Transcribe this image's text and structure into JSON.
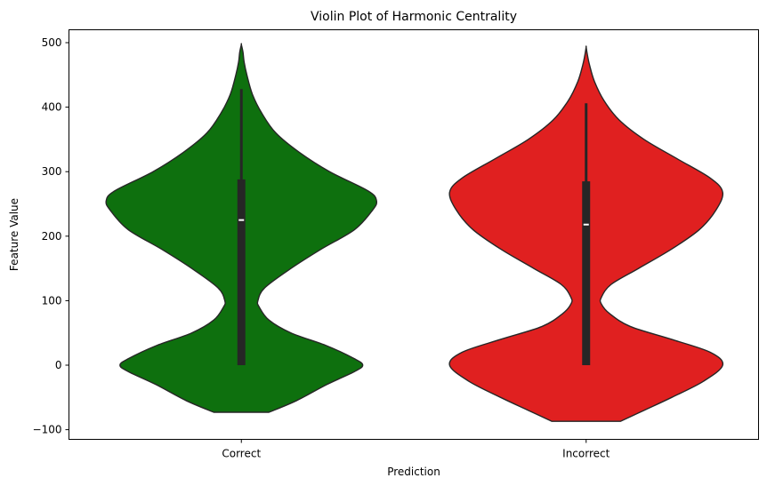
{
  "chart_data": {
    "type": "violin",
    "title": "Violin Plot of Harmonic Centrality",
    "xlabel": "Prediction",
    "ylabel": "Feature Value",
    "categories": [
      "Correct",
      "Incorrect"
    ],
    "ylim": [
      -115,
      520
    ],
    "yticks": [
      -100,
      0,
      100,
      200,
      300,
      400,
      500
    ],
    "ytick_labels": [
      "−100",
      "0",
      "100",
      "200",
      "300",
      "400",
      "500"
    ],
    "grid": false,
    "violins": [
      {
        "category": "Correct",
        "color": "#0e700e",
        "min": -73,
        "max": 497,
        "q1": 0,
        "median": 225,
        "q3": 288,
        "whisker_low": 0,
        "whisker_high": 428,
        "density": [
          [
            -73,
            0.2
          ],
          [
            -55,
            0.4
          ],
          [
            -30,
            0.62
          ],
          [
            -10,
            0.82
          ],
          [
            0,
            0.88
          ],
          [
            10,
            0.82
          ],
          [
            30,
            0.62
          ],
          [
            50,
            0.36
          ],
          [
            70,
            0.2
          ],
          [
            90,
            0.13
          ],
          [
            100,
            0.12
          ],
          [
            120,
            0.17
          ],
          [
            150,
            0.36
          ],
          [
            180,
            0.58
          ],
          [
            210,
            0.82
          ],
          [
            240,
            0.95
          ],
          [
            255,
            0.98
          ],
          [
            270,
            0.92
          ],
          [
            300,
            0.64
          ],
          [
            330,
            0.42
          ],
          [
            360,
            0.25
          ],
          [
            390,
            0.15
          ],
          [
            420,
            0.08
          ],
          [
            450,
            0.04
          ],
          [
            470,
            0.02
          ],
          [
            485,
            0.012
          ],
          [
            497,
            0.0
          ]
        ]
      },
      {
        "category": "Incorrect",
        "color": "#e02020",
        "min": -87,
        "max": 493,
        "q1": 0,
        "median": 218,
        "q3": 285,
        "whisker_low": 0,
        "whisker_high": 406,
        "density": [
          [
            -87,
            0.25
          ],
          [
            -70,
            0.42
          ],
          [
            -50,
            0.62
          ],
          [
            -25,
            0.85
          ],
          [
            0,
            0.99
          ],
          [
            20,
            0.9
          ],
          [
            40,
            0.62
          ],
          [
            60,
            0.32
          ],
          [
            80,
            0.17
          ],
          [
            95,
            0.11
          ],
          [
            105,
            0.11
          ],
          [
            125,
            0.18
          ],
          [
            150,
            0.38
          ],
          [
            180,
            0.62
          ],
          [
            210,
            0.82
          ],
          [
            240,
            0.94
          ],
          [
            268,
            0.99
          ],
          [
            290,
            0.9
          ],
          [
            320,
            0.66
          ],
          [
            350,
            0.42
          ],
          [
            380,
            0.24
          ],
          [
            410,
            0.13
          ],
          [
            440,
            0.06
          ],
          [
            465,
            0.025
          ],
          [
            480,
            0.01
          ],
          [
            493,
            0.0
          ]
        ]
      }
    ]
  }
}
